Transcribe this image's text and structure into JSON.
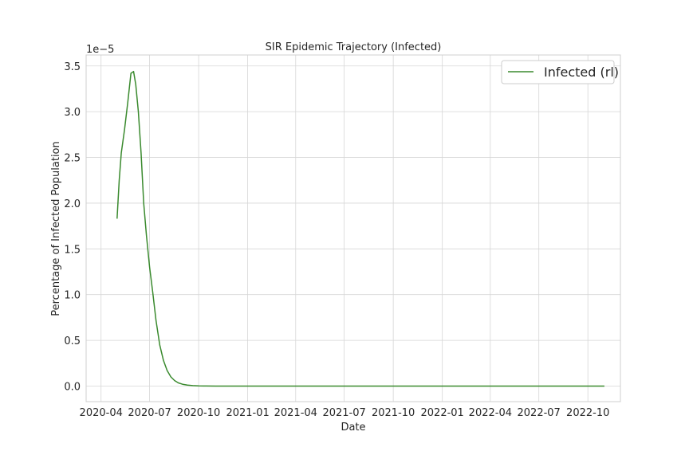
{
  "chart_data": {
    "type": "line",
    "title": "SIR Epidemic Trajectory (Infected)",
    "xlabel": "Date",
    "ylabel": "Percentage of Infected Population",
    "y_offset_text": "1e−5",
    "x_ticks": [
      "2020-04",
      "2020-07",
      "2020-10",
      "2021-01",
      "2021-04",
      "2021-07",
      "2021-10",
      "2022-01",
      "2022-04",
      "2022-07",
      "2022-10"
    ],
    "y_ticks": [
      "0.0",
      "0.5",
      "1.0",
      "1.5",
      "2.0",
      "2.5",
      "3.0",
      "3.5"
    ],
    "ylim": [
      -0.17,
      3.62
    ],
    "xlim": [
      "2020-03-04",
      "2022-12-01"
    ],
    "grid": true,
    "legend_position": "top-right",
    "series": [
      {
        "name": "Infected (rl)",
        "color": "#3a8a2e",
        "x": [
          "2020-05-01",
          "2020-05-05",
          "2020-05-09",
          "2020-05-15",
          "2020-05-21",
          "2020-05-27",
          "2020-06-01",
          "2020-06-05",
          "2020-06-10",
          "2020-06-15",
          "2020-06-20",
          "2020-06-25",
          "2020-07-01",
          "2020-07-07",
          "2020-07-13",
          "2020-07-20",
          "2020-07-27",
          "2020-08-03",
          "2020-08-10",
          "2020-08-17",
          "2020-08-24",
          "2020-09-01",
          "2020-09-10",
          "2020-09-20",
          "2020-10-01",
          "2020-10-15",
          "2020-11-01",
          "2021-01-01",
          "2021-06-01",
          "2022-01-01",
          "2022-06-01",
          "2022-11-01"
        ],
        "values": [
          1.83,
          2.25,
          2.55,
          2.8,
          3.1,
          3.42,
          3.44,
          3.3,
          3.0,
          2.55,
          2.0,
          1.65,
          1.3,
          1.02,
          0.72,
          0.45,
          0.28,
          0.17,
          0.1,
          0.06,
          0.035,
          0.02,
          0.01,
          0.005,
          0.002,
          0.001,
          0.0,
          0.0,
          0.0,
          0.0,
          0.0,
          0.0
        ]
      }
    ]
  }
}
